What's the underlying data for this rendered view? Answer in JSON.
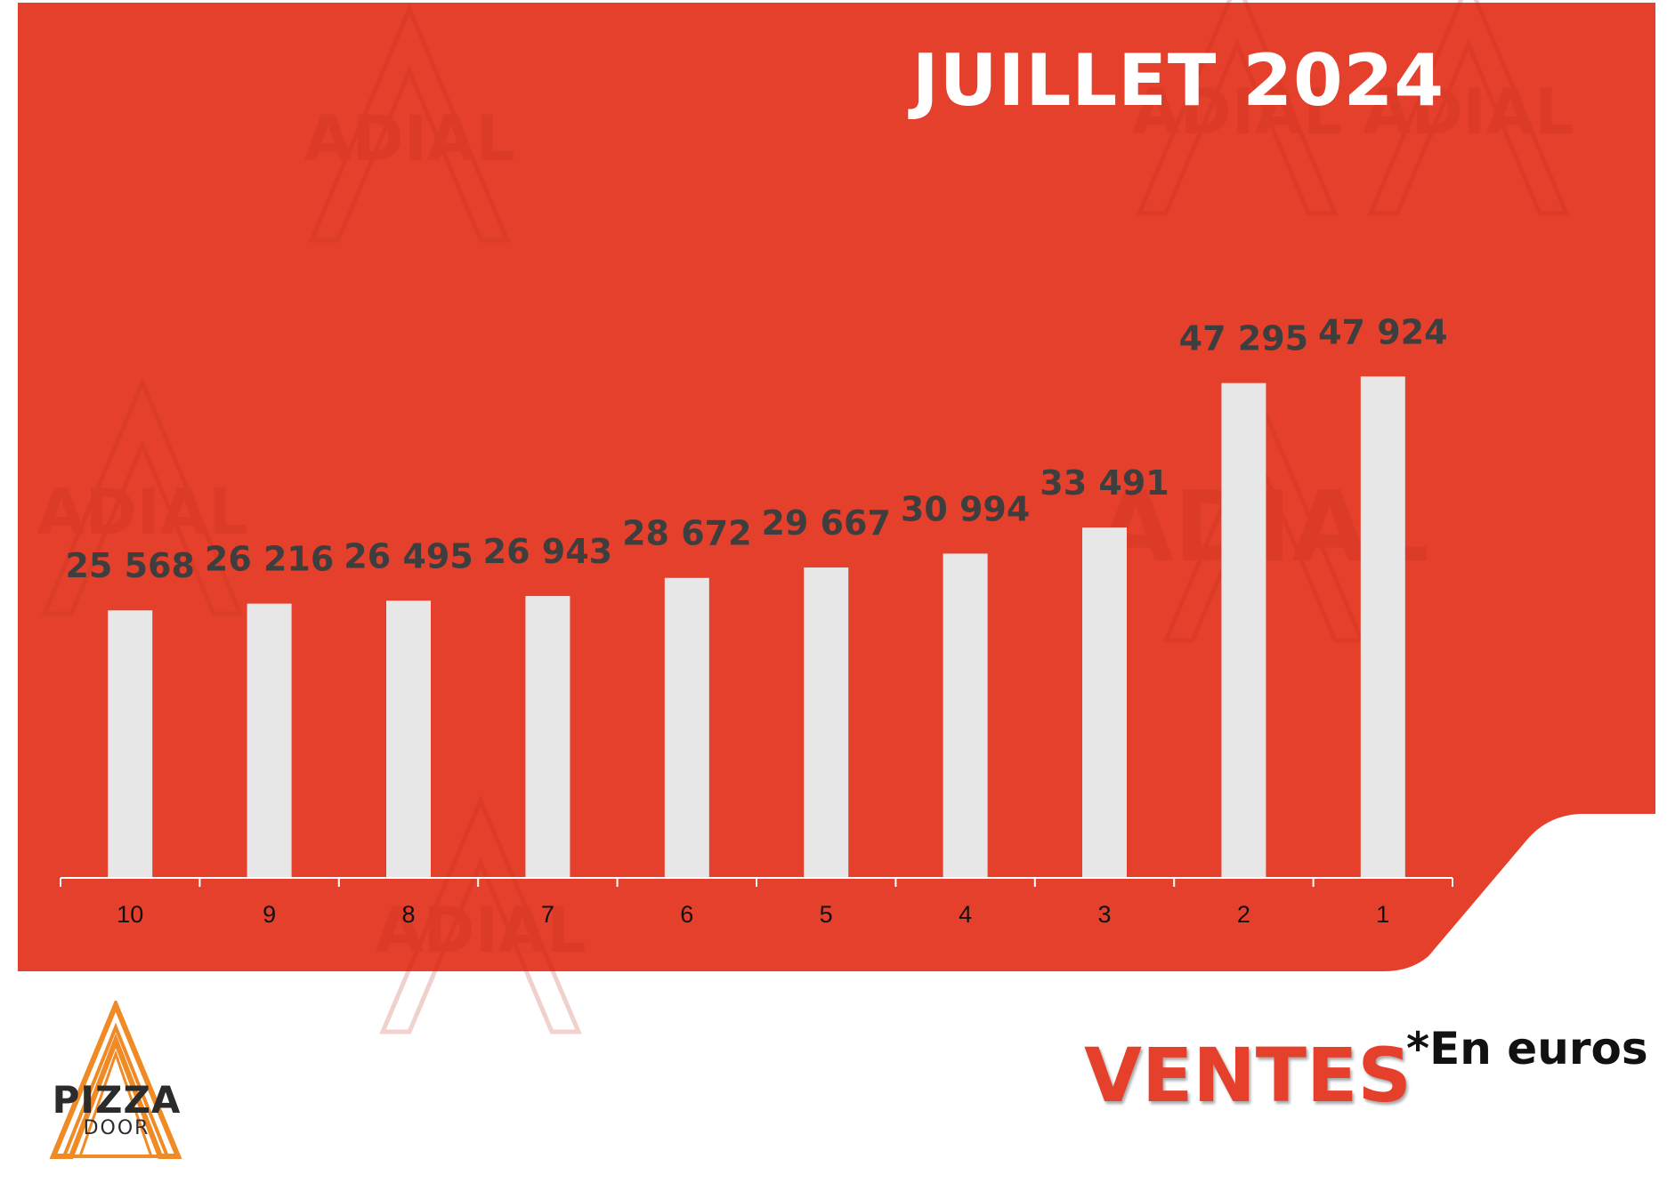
{
  "title": "JUILLET 2024",
  "footer": {
    "heading": "VENTES",
    "unit_note": "*En euros"
  },
  "logo": {
    "word1": "PIZZA",
    "word2": "DOOR"
  },
  "watermark": "ADIAL",
  "colors": {
    "panel": "#e5402b",
    "bar": "#e7e7e7",
    "value_label": "#3e3e3e",
    "axis": "#ffffff",
    "tick_label": "#111111"
  },
  "chart_data": {
    "type": "bar",
    "categories": [
      "10",
      "9",
      "8",
      "7",
      "6",
      "5",
      "4",
      "3",
      "2",
      "1"
    ],
    "values": [
      25568,
      26216,
      26495,
      26943,
      28672,
      29667,
      30994,
      33491,
      47295,
      47924
    ],
    "value_labels": [
      "25 568",
      "26 216",
      "26 495",
      "26 943",
      "28 672",
      "29 667",
      "30 994",
      "33 491",
      "47 295",
      "47 924"
    ],
    "title": "JUILLET 2024",
    "xlabel": "",
    "ylabel": "",
    "ylim": [
      0,
      73000
    ],
    "grid": false,
    "legend": "none"
  }
}
